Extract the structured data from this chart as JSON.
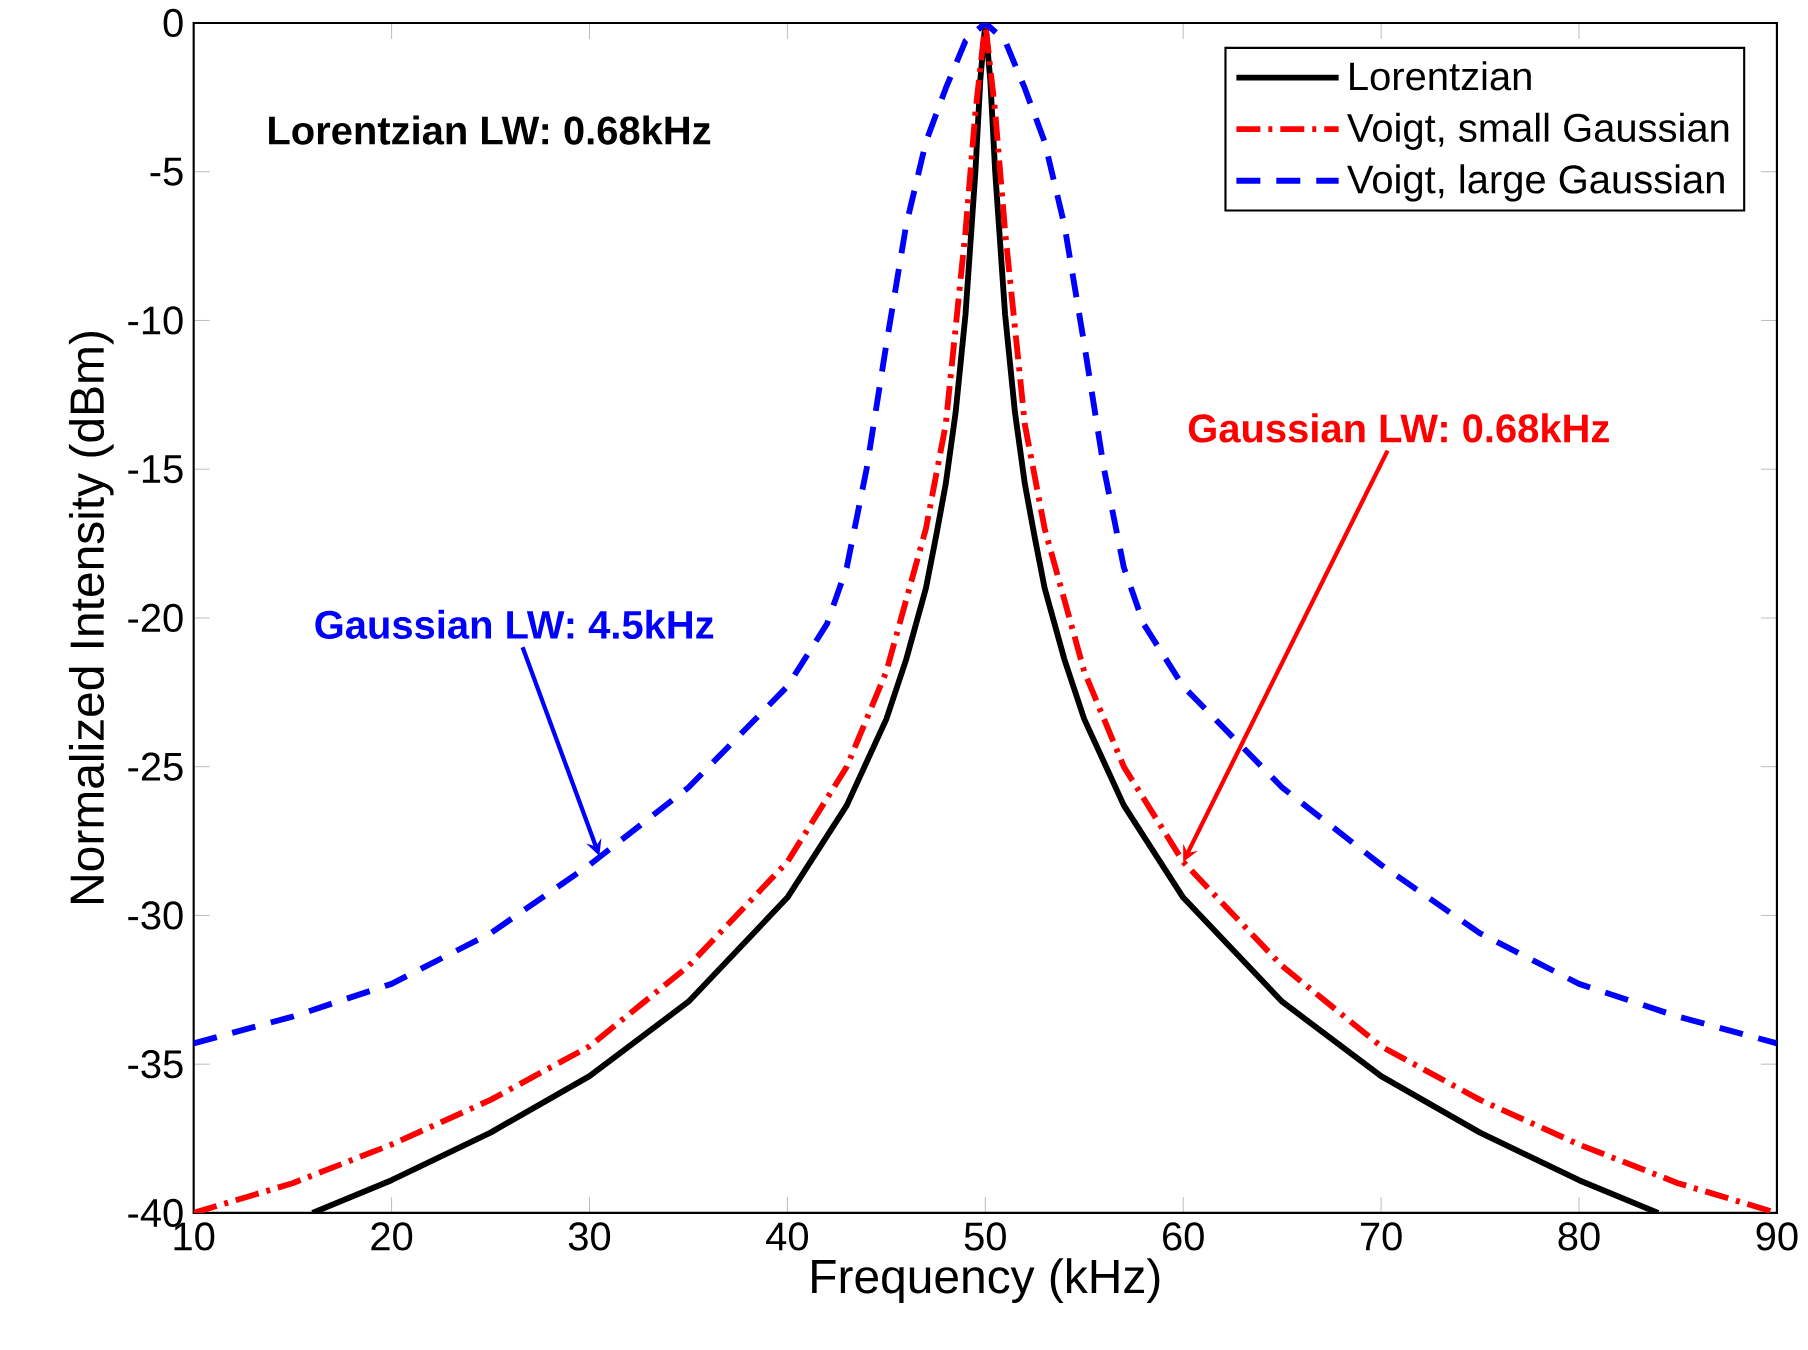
{
  "chart_data": {
    "type": "line",
    "xlabel": "Frequency (kHz)",
    "ylabel": "Normalized Intensity (dBm)",
    "xlim": [
      10,
      90
    ],
    "ylim": [
      -40,
      0
    ],
    "xticks": [
      10,
      20,
      30,
      40,
      50,
      60,
      70,
      80,
      90
    ],
    "yticks": [
      -40,
      -35,
      -30,
      -25,
      -20,
      -15,
      -10,
      -5,
      0
    ],
    "legend": "top right",
    "series": [
      {
        "name": "Lorentzian",
        "color": "#000000",
        "line_style": "solid",
        "x": [
          16,
          20,
          25,
          30,
          35,
          40,
          43,
          45,
          46,
          47,
          47.5,
          48,
          48.5,
          49,
          49.5,
          49.75,
          50,
          50.25,
          50.5,
          51,
          51.5,
          52,
          52.5,
          53,
          54,
          55,
          57,
          60,
          65,
          70,
          75,
          80,
          84
        ],
        "values": [
          -40,
          -38.9,
          -37.3,
          -35.4,
          -32.9,
          -29.4,
          -26.3,
          -23.4,
          -21.4,
          -19.0,
          -17.3,
          -15.5,
          -13.1,
          -9.8,
          -5.0,
          -1.9,
          0,
          -1.9,
          -5.0,
          -9.8,
          -13.1,
          -15.5,
          -17.3,
          -19.0,
          -21.4,
          -23.4,
          -26.3,
          -29.4,
          -32.9,
          -35.4,
          -37.3,
          -38.9,
          -40
        ]
      },
      {
        "name": "Voigt, small Gaussian",
        "color": "#ff0000",
        "line_style": "dashdot",
        "x": [
          10,
          15,
          20,
          25,
          30,
          35,
          40,
          43,
          45,
          47,
          48,
          49,
          49.5,
          50,
          50.5,
          51,
          52,
          53,
          55,
          57,
          60,
          65,
          70,
          75,
          80,
          85,
          90
        ],
        "values": [
          -40,
          -39,
          -37.7,
          -36.2,
          -34.4,
          -31.7,
          -28.2,
          -25,
          -21.8,
          -17,
          -13.5,
          -7,
          -3,
          0,
          -3,
          -7,
          -13.5,
          -17,
          -21.8,
          -25,
          -28.2,
          -31.7,
          -34.4,
          -36.2,
          -37.7,
          -39,
          -40
        ]
      },
      {
        "name": "Voigt, large Gaussian",
        "color": "#0000ff",
        "line_style": "dashed",
        "x": [
          10,
          15,
          20,
          25,
          30,
          35,
          40,
          42,
          43,
          44,
          45,
          46,
          47,
          48,
          49,
          50,
          51,
          52,
          53,
          54,
          55,
          56,
          57,
          58,
          60,
          65,
          70,
          75,
          80,
          85,
          90
        ],
        "values": [
          -34.3,
          -33.4,
          -32.3,
          -30.6,
          -28.3,
          -25.7,
          -22.3,
          -20.2,
          -18.3,
          -15,
          -10.8,
          -6.8,
          -4,
          -2.2,
          -0.6,
          0,
          -0.6,
          -2.2,
          -4,
          -6.8,
          -10.8,
          -15,
          -18.3,
          -20.2,
          -22.3,
          -25.7,
          -28.3,
          -30.6,
          -32.3,
          -33.4,
          -34.3
        ]
      }
    ],
    "annotations": [
      "Lorentzian LW: 0.68kHz",
      {
        "text": "Gaussian LW: 4.5kHz",
        "x": 30.5,
        "y": -28
      },
      {
        "text": "Gaussian LW: 0.68kHz",
        "x": 60,
        "y": -28.2
      }
    ]
  }
}
